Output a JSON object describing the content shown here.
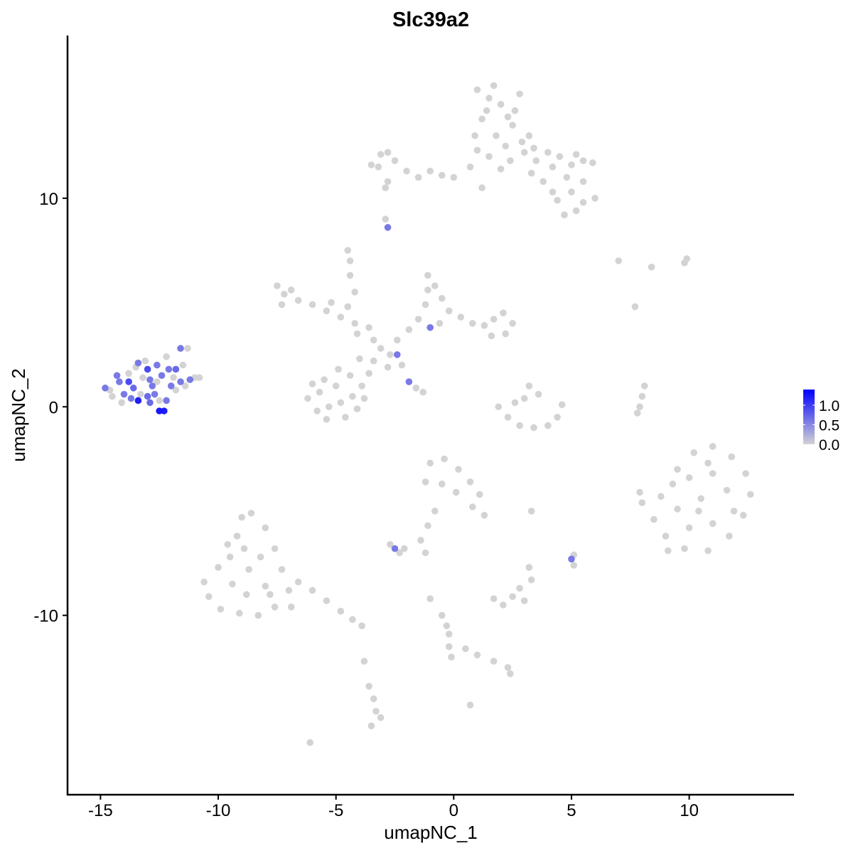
{
  "chart_data": {
    "type": "scatter",
    "title": "Slc39a2",
    "xlabel": "umapNC_1",
    "ylabel": "umapNC_2",
    "xlim": [
      -16.4,
      14.45
    ],
    "ylim": [
      -18.6,
      17.8
    ],
    "xticks": [
      -15,
      -10,
      -5,
      0,
      5,
      10
    ],
    "yticks": [
      -10,
      0,
      10
    ],
    "grid": false,
    "legend": {
      "placement": "right",
      "labels": [
        "1.0",
        "0.5",
        "0.0"
      ],
      "values": [
        1.0,
        0.5,
        0.0
      ],
      "range": [
        0,
        1.4
      ],
      "low_color": "#d3d3d3",
      "high_color": "#0000ff"
    },
    "point_columns": [
      "umapNC_1",
      "umapNC_2",
      "expression"
    ],
    "points": [
      [
        -14.8,
        0.9,
        0.6
      ],
      [
        -14.5,
        0.5,
        0
      ],
      [
        -14.2,
        1.2,
        0.6
      ],
      [
        -14.0,
        0.6,
        0.6
      ],
      [
        -13.8,
        1.6,
        0
      ],
      [
        -13.6,
        0.9,
        0.7
      ],
      [
        -13.4,
        2.1,
        0.6
      ],
      [
        -13.2,
        1.4,
        0
      ],
      [
        -13.0,
        0.5,
        0.7
      ],
      [
        -13.0,
        1.8,
        0.9
      ],
      [
        -12.8,
        1.0,
        0.6
      ],
      [
        -12.6,
        2.0,
        0.6
      ],
      [
        -12.5,
        0.3,
        0
      ],
      [
        -12.4,
        1.5,
        0.6
      ],
      [
        -12.2,
        2.4,
        0
      ],
      [
        -12.0,
        1.0,
        0.6
      ],
      [
        -11.8,
        1.8,
        0.7
      ],
      [
        -11.6,
        1.2,
        0.6
      ],
      [
        -11.4,
        1.0,
        0
      ],
      [
        -11.2,
        1.3,
        0.6
      ],
      [
        -11.0,
        1.4,
        0
      ],
      [
        -11.6,
        2.8,
        0.6
      ],
      [
        -11.3,
        2.8,
        0
      ],
      [
        -12.5,
        -0.2,
        1.25
      ],
      [
        -12.3,
        -0.2,
        1.2
      ],
      [
        -13.4,
        0.3,
        1.2
      ],
      [
        -13.8,
        1.2,
        0.9
      ],
      [
        -12.9,
        0.2,
        0.7
      ],
      [
        -12.2,
        0.3,
        0.6
      ],
      [
        -14.1,
        0.2,
        0
      ],
      [
        -13.3,
        0.6,
        0
      ],
      [
        -12.6,
        1.2,
        0
      ],
      [
        -11.9,
        1.4,
        0
      ],
      [
        -10.8,
        1.4,
        0
      ],
      [
        -11.8,
        0.8,
        0
      ],
      [
        -13.5,
        1.9,
        0
      ],
      [
        -12.9,
        1.3,
        0.6
      ],
      [
        -14.6,
        0.8,
        0
      ],
      [
        -13.7,
        0.4,
        0.6
      ],
      [
        -12.1,
        1.8,
        0.6
      ],
      [
        -14.3,
        1.5,
        0.6
      ],
      [
        -13.1,
        2.2,
        0
      ],
      [
        -11.5,
        2.0,
        0
      ],
      [
        -12.7,
        0.6,
        0.6
      ],
      [
        1.5,
        14.8,
        0
      ],
      [
        2.0,
        14.5,
        0
      ],
      [
        1.2,
        13.8,
        0
      ],
      [
        2.5,
        13.5,
        0
      ],
      [
        1.8,
        13.0,
        0
      ],
      [
        2.2,
        12.5,
        0
      ],
      [
        3.0,
        12.2,
        0
      ],
      [
        3.5,
        11.8,
        0
      ],
      [
        4.2,
        11.5,
        0
      ],
      [
        5.0,
        11.6,
        0
      ],
      [
        5.5,
        11.8,
        0
      ],
      [
        4.5,
        12.0,
        0
      ],
      [
        4.8,
        11.0,
        0
      ],
      [
        5.5,
        10.8,
        0
      ],
      [
        6.0,
        10.0,
        0
      ],
      [
        5.5,
        9.8,
        0
      ],
      [
        4.7,
        9.2,
        0
      ],
      [
        4.2,
        10.3,
        0
      ],
      [
        3.8,
        10.8,
        0
      ],
      [
        3.3,
        11.2,
        0
      ],
      [
        1.0,
        15.2,
        0
      ],
      [
        2.6,
        14.2,
        0
      ],
      [
        0.9,
        13.0,
        0
      ],
      [
        1.5,
        12.0,
        0
      ],
      [
        0.7,
        11.5,
        0
      ],
      [
        2.0,
        11.4,
        0
      ],
      [
        1.2,
        10.5,
        0
      ],
      [
        2.8,
        15.0,
        0
      ],
      [
        1.7,
        15.4,
        0
      ],
      [
        2.3,
        13.9,
        0
      ],
      [
        1.4,
        14.2,
        0
      ],
      [
        3.2,
        13.0,
        0
      ],
      [
        2.9,
        12.7,
        0
      ],
      [
        4.0,
        12.2,
        0
      ],
      [
        5.2,
        12.1,
        0
      ],
      [
        5.9,
        11.7,
        0
      ],
      [
        5.0,
        10.3,
        0
      ],
      [
        4.4,
        9.9,
        0
      ],
      [
        5.2,
        9.4,
        0
      ],
      [
        3.4,
        12.4,
        0
      ],
      [
        2.4,
        11.8,
        0
      ],
      [
        1.0,
        12.3,
        0
      ],
      [
        -3.2,
        11.5,
        0
      ],
      [
        -2.5,
        11.8,
        0
      ],
      [
        -2.8,
        12.2,
        0
      ],
      [
        -2.0,
        11.3,
        0
      ],
      [
        -1.5,
        11.0,
        0
      ],
      [
        -1.0,
        11.3,
        0
      ],
      [
        -0.5,
        11.1,
        0
      ],
      [
        0.0,
        11.0,
        0
      ],
      [
        -3.5,
        11.6,
        0
      ],
      [
        -2.8,
        10.8,
        0
      ],
      [
        -2.9,
        10.5,
        0
      ],
      [
        -2.9,
        9.0,
        0
      ],
      [
        -2.8,
        8.6,
        0.6
      ],
      [
        -3.1,
        12.1,
        0
      ],
      [
        -3.1,
        2.8,
        0
      ],
      [
        -3.4,
        3.2,
        0
      ],
      [
        -2.7,
        2.5,
        0
      ],
      [
        -3.6,
        3.8,
        0
      ],
      [
        -4.2,
        4.0,
        0
      ],
      [
        -4.8,
        4.3,
        0
      ],
      [
        -5.4,
        4.6,
        0
      ],
      [
        -6.0,
        4.9,
        0
      ],
      [
        -6.6,
        5.1,
        0
      ],
      [
        -7.2,
        5.4,
        0
      ],
      [
        -7.5,
        5.8,
        0
      ],
      [
        -7.3,
        4.9,
        0
      ],
      [
        -6.9,
        5.6,
        0
      ],
      [
        -5.2,
        5.0,
        0
      ],
      [
        -4.5,
        4.8,
        0
      ],
      [
        -4.2,
        5.5,
        0
      ],
      [
        -4.4,
        6.3,
        0
      ],
      [
        -4.4,
        7.0,
        0
      ],
      [
        -4.5,
        7.5,
        0
      ],
      [
        -4.1,
        3.5,
        0
      ],
      [
        -2.4,
        3.2,
        0
      ],
      [
        -1.9,
        3.7,
        0
      ],
      [
        -1.5,
        4.2,
        0
      ],
      [
        -1.2,
        4.9,
        0
      ],
      [
        -1.1,
        5.6,
        0
      ],
      [
        -1.1,
        6.3,
        0
      ],
      [
        -0.8,
        5.8,
        0
      ],
      [
        -0.5,
        5.2,
        0
      ],
      [
        -0.2,
        4.6,
        0
      ],
      [
        0.3,
        4.3,
        0
      ],
      [
        0.8,
        4.0,
        0
      ],
      [
        1.3,
        3.9,
        0
      ],
      [
        1.7,
        4.2,
        0
      ],
      [
        2.1,
        4.5,
        0
      ],
      [
        2.5,
        4.0,
        0
      ],
      [
        2.2,
        3.5,
        0
      ],
      [
        1.6,
        3.4,
        0
      ],
      [
        -1.0,
        3.8,
        0.6
      ],
      [
        -0.6,
        4.0,
        0
      ],
      [
        -3.4,
        2.2,
        0
      ],
      [
        -3.6,
        1.6,
        0
      ],
      [
        -3.9,
        1.0,
        0
      ],
      [
        -4.3,
        0.5,
        0
      ],
      [
        -4.8,
        0.2,
        0
      ],
      [
        -5.3,
        0.0,
        0
      ],
      [
        -5.8,
        -0.2,
        0
      ],
      [
        -6.2,
        0.4,
        0
      ],
      [
        -6.0,
        1.1,
        0
      ],
      [
        -5.5,
        1.3,
        0
      ],
      [
        -5.0,
        1.0,
        0
      ],
      [
        -4.4,
        1.5,
        0
      ],
      [
        -4.1,
        -0.1,
        0
      ],
      [
        -4.6,
        -0.5,
        0
      ],
      [
        -5.4,
        -0.6,
        0
      ],
      [
        -3.8,
        0.4,
        0
      ],
      [
        -5.7,
        0.7,
        0
      ],
      [
        -4.9,
        1.8,
        0
      ],
      [
        -4.0,
        2.3,
        0
      ],
      [
        -2.4,
        2.5,
        0.6
      ],
      [
        -2.2,
        2.0,
        0
      ],
      [
        -1.9,
        1.2,
        0.6
      ],
      [
        -1.6,
        0.9,
        0
      ],
      [
        -1.3,
        0.7,
        0
      ],
      [
        -2.8,
        1.9,
        0
      ],
      [
        1.9,
        0.0,
        0
      ],
      [
        2.3,
        -0.5,
        0
      ],
      [
        2.8,
        -0.9,
        0
      ],
      [
        3.4,
        -1.0,
        0
      ],
      [
        4.0,
        -0.9,
        0
      ],
      [
        4.4,
        -0.5,
        0
      ],
      [
        4.6,
        0.1,
        0
      ],
      [
        3.0,
        0.4,
        0
      ],
      [
        3.2,
        1.0,
        0
      ],
      [
        3.6,
        0.6,
        0
      ],
      [
        2.6,
        0.2,
        0
      ],
      [
        8.1,
        1.0,
        0
      ],
      [
        8.0,
        0.5,
        0
      ],
      [
        7.9,
        0.0,
        0
      ],
      [
        7.8,
        -0.3,
        0
      ],
      [
        7.0,
        7.0,
        0
      ],
      [
        8.4,
        6.7,
        0
      ],
      [
        9.8,
        6.9,
        0
      ],
      [
        9.9,
        7.1,
        0
      ],
      [
        7.7,
        4.8,
        0
      ],
      [
        10.5,
        -4.4,
        0
      ],
      [
        9.5,
        -3.0,
        0
      ],
      [
        10.2,
        -2.2,
        0
      ],
      [
        11.0,
        -1.9,
        0
      ],
      [
        11.8,
        -2.4,
        0
      ],
      [
        12.4,
        -3.2,
        0
      ],
      [
        12.6,
        -4.2,
        0
      ],
      [
        12.3,
        -5.2,
        0
      ],
      [
        11.7,
        -6.2,
        0
      ],
      [
        10.8,
        -6.9,
        0
      ],
      [
        9.8,
        -6.8,
        0
      ],
      [
        9.0,
        -6.2,
        0
      ],
      [
        8.5,
        -5.4,
        0
      ],
      [
        8.8,
        -4.3,
        0
      ],
      [
        9.3,
        -3.7,
        0
      ],
      [
        10.0,
        -3.4,
        0
      ],
      [
        11.0,
        -3.2,
        0
      ],
      [
        11.6,
        -4.0,
        0
      ],
      [
        11.9,
        -5.0,
        0
      ],
      [
        11.0,
        -5.6,
        0
      ],
      [
        10.0,
        -5.8,
        0
      ],
      [
        9.5,
        -4.9,
        0
      ],
      [
        10.4,
        -5.0,
        0
      ],
      [
        10.8,
        -2.7,
        0
      ],
      [
        9.1,
        -6.9,
        0
      ],
      [
        7.9,
        -4.1,
        0
      ],
      [
        8.0,
        -4.6,
        0
      ],
      [
        -8.7,
        -7.8,
        0
      ],
      [
        -9.2,
        -6.2,
        0
      ],
      [
        -9.0,
        -5.3,
        0
      ],
      [
        -8.6,
        -5.1,
        0
      ],
      [
        -8.0,
        -5.8,
        0
      ],
      [
        -7.6,
        -6.8,
        0
      ],
      [
        -7.3,
        -7.8,
        0
      ],
      [
        -7.0,
        -8.8,
        0
      ],
      [
        -7.6,
        -9.6,
        0
      ],
      [
        -8.3,
        -10.0,
        0
      ],
      [
        -9.1,
        -9.9,
        0
      ],
      [
        -9.9,
        -9.7,
        0
      ],
      [
        -10.4,
        -9.1,
        0
      ],
      [
        -10.6,
        -8.4,
        0
      ],
      [
        -10.0,
        -7.7,
        0
      ],
      [
        -9.5,
        -7.2,
        0
      ],
      [
        -8.9,
        -6.8,
        0
      ],
      [
        -8.2,
        -7.2,
        0
      ],
      [
        -8.0,
        -8.6,
        0
      ],
      [
        -8.8,
        -9.0,
        0
      ],
      [
        -9.4,
        -8.5,
        0
      ],
      [
        -7.8,
        -9.0,
        0
      ],
      [
        -6.6,
        -8.4,
        0
      ],
      [
        -6.0,
        -8.8,
        0
      ],
      [
        -5.4,
        -9.3,
        0
      ],
      [
        -4.8,
        -9.8,
        0
      ],
      [
        -4.3,
        -10.2,
        0
      ],
      [
        -3.9,
        -10.5,
        0
      ],
      [
        -6.9,
        -9.6,
        0
      ],
      [
        -9.6,
        -6.6,
        0
      ],
      [
        -0.5,
        -3.7,
        0
      ],
      [
        -1.0,
        -2.7,
        0
      ],
      [
        -0.4,
        -2.5,
        0
      ],
      [
        0.2,
        -3.0,
        0
      ],
      [
        0.7,
        -3.6,
        0
      ],
      [
        1.1,
        -4.2,
        0
      ],
      [
        1.3,
        -5.2,
        0
      ],
      [
        0.8,
        -4.8,
        0
      ],
      [
        -1.2,
        -3.6,
        0
      ],
      [
        0.1,
        -4.1,
        0
      ],
      [
        -1.1,
        -5.7,
        0
      ],
      [
        -1.4,
        -6.4,
        0
      ],
      [
        -0.8,
        -5.0,
        0
      ],
      [
        -2.5,
        -6.8,
        0.6
      ],
      [
        -2.7,
        -6.6,
        0
      ],
      [
        -2.3,
        -7.0,
        0
      ],
      [
        -2.1,
        -6.8,
        0
      ],
      [
        -1.2,
        -7.0,
        0
      ],
      [
        5.0,
        -7.3,
        0.6
      ],
      [
        5.1,
        -7.1,
        0
      ],
      [
        5.1,
        -7.6,
        0
      ],
      [
        3.3,
        -5.0,
        0
      ],
      [
        2.5,
        -9.1,
        0
      ],
      [
        2.1,
        -9.5,
        0
      ],
      [
        3.0,
        -9.3,
        0
      ],
      [
        2.8,
        -8.7,
        0
      ],
      [
        1.7,
        -9.2,
        0
      ],
      [
        3.3,
        -8.3,
        0
      ],
      [
        3.2,
        -7.7,
        0
      ],
      [
        -1.0,
        -9.2,
        0
      ],
      [
        -0.5,
        -10.0,
        0
      ],
      [
        -0.3,
        -10.5,
        0
      ],
      [
        -0.2,
        -10.9,
        0
      ],
      [
        -0.2,
        -11.5,
        0
      ],
      [
        -0.1,
        -12.0,
        0
      ],
      [
        0.5,
        -11.6,
        0
      ],
      [
        1.0,
        -11.9,
        0
      ],
      [
        1.7,
        -12.2,
        0
      ],
      [
        2.3,
        -12.5,
        0
      ],
      [
        2.4,
        -12.8,
        0
      ],
      [
        -3.8,
        -12.2,
        0
      ],
      [
        -3.6,
        -13.4,
        0
      ],
      [
        -3.4,
        -14.0,
        0
      ],
      [
        -3.3,
        -14.6,
        0
      ],
      [
        -3.5,
        -15.3,
        0
      ],
      [
        -3.1,
        -14.9,
        0
      ],
      [
        0.7,
        -14.3,
        0
      ],
      [
        -6.1,
        -16.1,
        0
      ]
    ]
  }
}
